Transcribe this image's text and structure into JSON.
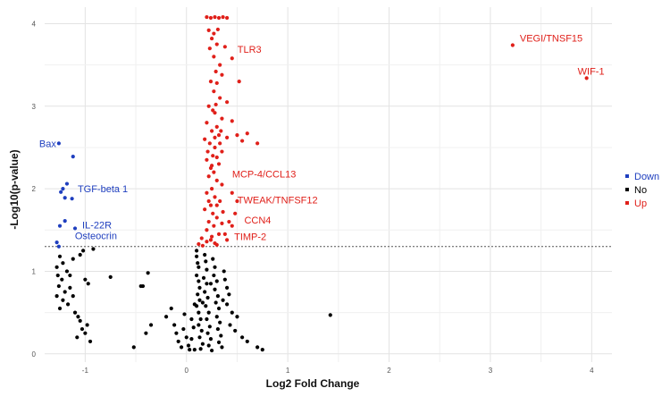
{
  "chart_data": {
    "type": "scatter",
    "xlabel": "Log2 Fold Change",
    "ylabel": "-Log10(p-value)",
    "xlim": [
      -1.4,
      4.2
    ],
    "ylim": [
      -0.1,
      4.2
    ],
    "x_ticks": [
      "-1",
      "0",
      "1",
      "2",
      "3",
      "4"
    ],
    "y_ticks": [
      "0",
      "1",
      "2",
      "3",
      "4"
    ],
    "threshold_y": 1.3,
    "grid": true,
    "legend_position": "right",
    "colors": {
      "Down": "#1f3fbf",
      "No": "#000000",
      "Up": "#e0201a",
      "threshold": "#555555"
    },
    "series": [
      {
        "name": "Down",
        "points": [
          [
            -1.26,
            2.55
          ],
          [
            -1.12,
            2.39
          ],
          [
            -1.18,
            2.06
          ],
          [
            -1.22,
            2.0
          ],
          [
            -1.24,
            1.96
          ],
          [
            -1.2,
            1.89
          ],
          [
            -1.13,
            1.88
          ],
          [
            -1.2,
            1.61
          ],
          [
            -1.25,
            1.55
          ],
          [
            -1.1,
            1.52
          ],
          [
            -1.28,
            1.35
          ],
          [
            -1.26,
            1.3
          ]
        ]
      },
      {
        "name": "No",
        "points": [
          [
            -1.25,
            1.18
          ],
          [
            -1.28,
            1.05
          ],
          [
            -1.22,
            1.1
          ],
          [
            -1.18,
            1.0
          ],
          [
            -1.27,
            0.95
          ],
          [
            -1.23,
            0.9
          ],
          [
            -1.26,
            0.82
          ],
          [
            -1.2,
            0.75
          ],
          [
            -1.15,
            0.8
          ],
          [
            -1.28,
            0.7
          ],
          [
            -1.22,
            0.65
          ],
          [
            -1.17,
            0.6
          ],
          [
            -1.25,
            0.55
          ],
          [
            -1.12,
            0.7
          ],
          [
            -1.1,
            0.5
          ],
          [
            -1.07,
            0.45
          ],
          [
            -1.05,
            0.4
          ],
          [
            -1.03,
            0.3
          ],
          [
            -1.0,
            0.25
          ],
          [
            -0.98,
            0.35
          ],
          [
            -1.08,
            0.2
          ],
          [
            -0.95,
            0.15
          ],
          [
            -1.15,
            0.95
          ],
          [
            -1.05,
            1.2
          ],
          [
            -1.02,
            1.25
          ],
          [
            -0.92,
            1.27
          ],
          [
            -1.0,
            0.9
          ],
          [
            -0.97,
            0.85
          ],
          [
            -1.12,
            1.15
          ],
          [
            -0.75,
            0.93
          ],
          [
            -0.52,
            0.08
          ],
          [
            -0.43,
            0.82
          ],
          [
            -0.45,
            0.82
          ],
          [
            -0.38,
            0.98
          ],
          [
            -0.35,
            0.35
          ],
          [
            -0.4,
            0.25
          ],
          [
            -0.2,
            0.45
          ],
          [
            -0.15,
            0.55
          ],
          [
            -0.12,
            0.35
          ],
          [
            -0.1,
            0.25
          ],
          [
            -0.08,
            0.15
          ],
          [
            -0.05,
            0.08
          ],
          [
            -0.03,
            0.3
          ],
          [
            -0.02,
            0.48
          ],
          [
            0.0,
            0.2
          ],
          [
            0.02,
            0.1
          ],
          [
            0.03,
            0.05
          ],
          [
            0.05,
            0.42
          ],
          [
            0.07,
            0.32
          ],
          [
            0.08,
            0.6
          ],
          [
            0.1,
            1.25
          ],
          [
            0.1,
            1.18
          ],
          [
            0.11,
            1.1
          ],
          [
            0.12,
            1.05
          ],
          [
            0.1,
            0.95
          ],
          [
            0.12,
            0.88
          ],
          [
            0.13,
            0.8
          ],
          [
            0.11,
            0.72
          ],
          [
            0.13,
            0.65
          ],
          [
            0.1,
            0.58
          ],
          [
            0.12,
            0.5
          ],
          [
            0.14,
            0.42
          ],
          [
            0.12,
            0.35
          ],
          [
            0.15,
            0.28
          ],
          [
            0.13,
            0.2
          ],
          [
            0.16,
            0.12
          ],
          [
            0.14,
            0.06
          ],
          [
            0.18,
            1.2
          ],
          [
            0.19,
            1.12
          ],
          [
            0.2,
            1.02
          ],
          [
            0.17,
            0.92
          ],
          [
            0.2,
            0.85
          ],
          [
            0.18,
            0.75
          ],
          [
            0.21,
            0.68
          ],
          [
            0.19,
            0.58
          ],
          [
            0.22,
            0.5
          ],
          [
            0.2,
            0.42
          ],
          [
            0.23,
            0.33
          ],
          [
            0.21,
            0.25
          ],
          [
            0.24,
            0.18
          ],
          [
            0.22,
            0.1
          ],
          [
            0.25,
            0.04
          ],
          [
            0.26,
            1.15
          ],
          [
            0.28,
            1.05
          ],
          [
            0.27,
            0.95
          ],
          [
            0.3,
            0.88
          ],
          [
            0.28,
            0.78
          ],
          [
            0.31,
            0.7
          ],
          [
            0.29,
            0.62
          ],
          [
            0.32,
            0.55
          ],
          [
            0.3,
            0.45
          ],
          [
            0.33,
            0.38
          ],
          [
            0.31,
            0.3
          ],
          [
            0.34,
            0.22
          ],
          [
            0.32,
            0.14
          ],
          [
            0.35,
            0.08
          ],
          [
            0.37,
            1.0
          ],
          [
            0.38,
            0.9
          ],
          [
            0.4,
            0.8
          ],
          [
            0.42,
            0.72
          ],
          [
            0.4,
            0.6
          ],
          [
            0.45,
            0.5
          ],
          [
            0.43,
            0.35
          ],
          [
            0.48,
            0.28
          ],
          [
            0.5,
            0.45
          ],
          [
            0.55,
            0.2
          ],
          [
            0.6,
            0.15
          ],
          [
            0.7,
            0.08
          ],
          [
            0.75,
            0.05
          ],
          [
            1.42,
            0.47
          ],
          [
            0.08,
            0.05
          ],
          [
            0.05,
            0.18
          ],
          [
            0.16,
            0.62
          ],
          [
            0.24,
            0.85
          ],
          [
            0.36,
            0.65
          ]
        ]
      },
      {
        "name": "Up",
        "points": [
          [
            0.2,
            4.08
          ],
          [
            0.24,
            4.07
          ],
          [
            0.28,
            4.08
          ],
          [
            0.32,
            4.07
          ],
          [
            0.36,
            4.08
          ],
          [
            0.4,
            4.07
          ],
          [
            0.22,
            3.92
          ],
          [
            0.27,
            3.88
          ],
          [
            0.31,
            3.93
          ],
          [
            0.25,
            3.82
          ],
          [
            0.3,
            3.75
          ],
          [
            0.23,
            3.7
          ],
          [
            0.27,
            3.6
          ],
          [
            0.38,
            3.72
          ],
          [
            0.45,
            3.58
          ],
          [
            0.33,
            3.5
          ],
          [
            0.29,
            3.42
          ],
          [
            0.35,
            3.38
          ],
          [
            0.24,
            3.3
          ],
          [
            0.3,
            3.28
          ],
          [
            0.52,
            3.3
          ],
          [
            0.27,
            3.18
          ],
          [
            0.33,
            3.1
          ],
          [
            0.4,
            3.05
          ],
          [
            0.22,
            3.0
          ],
          [
            0.28,
            2.92
          ],
          [
            0.35,
            2.85
          ],
          [
            0.45,
            2.82
          ],
          [
            0.2,
            2.8
          ],
          [
            0.3,
            2.75
          ],
          [
            0.25,
            2.7
          ],
          [
            0.32,
            2.65
          ],
          [
            0.4,
            2.62
          ],
          [
            0.5,
            2.65
          ],
          [
            0.6,
            2.67
          ],
          [
            0.55,
            2.58
          ],
          [
            0.7,
            2.55
          ],
          [
            0.18,
            2.6
          ],
          [
            0.23,
            2.55
          ],
          [
            0.28,
            2.5
          ],
          [
            0.35,
            2.45
          ],
          [
            0.26,
            2.4
          ],
          [
            0.2,
            2.35
          ],
          [
            0.32,
            2.3
          ],
          [
            0.24,
            2.25
          ],
          [
            0.27,
            2.2
          ],
          [
            0.22,
            2.15
          ],
          [
            0.3,
            2.1
          ],
          [
            0.35,
            2.05
          ],
          [
            0.25,
            2.0
          ],
          [
            0.2,
            1.95
          ],
          [
            0.28,
            1.9
          ],
          [
            0.33,
            1.85
          ],
          [
            0.24,
            1.8
          ],
          [
            0.45,
            1.95
          ],
          [
            0.5,
            1.85
          ],
          [
            0.18,
            1.75
          ],
          [
            0.26,
            1.7
          ],
          [
            0.3,
            1.65
          ],
          [
            0.22,
            1.6
          ],
          [
            0.35,
            1.58
          ],
          [
            0.42,
            1.6
          ],
          [
            0.27,
            1.55
          ],
          [
            0.2,
            1.5
          ],
          [
            0.32,
            1.45
          ],
          [
            0.25,
            1.42
          ],
          [
            0.38,
            1.45
          ],
          [
            0.15,
            1.4
          ],
          [
            0.2,
            1.36
          ],
          [
            0.28,
            1.34
          ],
          [
            0.12,
            1.33
          ],
          [
            0.16,
            1.31
          ],
          [
            0.24,
            1.38
          ],
          [
            0.3,
            1.32
          ],
          [
            0.4,
            1.38
          ],
          [
            0.45,
            1.55
          ],
          [
            0.48,
            1.7
          ],
          [
            0.36,
            1.72
          ],
          [
            0.3,
            1.8
          ],
          [
            0.22,
            1.85
          ],
          [
            0.26,
            2.95
          ],
          [
            0.29,
            3.02
          ],
          [
            0.34,
            2.7
          ],
          [
            0.21,
            2.45
          ],
          [
            0.28,
            2.62
          ],
          [
            0.3,
            2.38
          ],
          [
            0.25,
            2.28
          ],
          [
            0.33,
            2.55
          ],
          [
            3.22,
            3.74
          ],
          [
            3.95,
            3.34
          ]
        ]
      }
    ],
    "annotations": [
      {
        "text": "Bax",
        "x": -1.26,
        "y": 2.55,
        "series": "Down"
      },
      {
        "text": "TGF-beta 1",
        "x": -1.18,
        "y": 2.0,
        "series": "Down"
      },
      {
        "text": "IL-22R",
        "x": -1.1,
        "y": 1.52,
        "series": "Down"
      },
      {
        "text": "Osteocrin",
        "x": -1.26,
        "y": 1.3,
        "series": "Down"
      },
      {
        "text": "TLR3",
        "x": 0.45,
        "y": 3.58,
        "series": "Up"
      },
      {
        "text": "MCP-4/CCL13",
        "x": 0.38,
        "y": 2.05,
        "series": "Up"
      },
      {
        "text": "TWEAK/TNFSF12",
        "x": 0.45,
        "y": 1.95,
        "series": "Up"
      },
      {
        "text": "CCN4",
        "x": 0.5,
        "y": 1.58,
        "series": "Up"
      },
      {
        "text": "TIMP-2",
        "x": 0.4,
        "y": 1.38,
        "series": "Up"
      },
      {
        "text": "VEGI/TNSF15",
        "x": 3.22,
        "y": 3.74,
        "series": "Up"
      },
      {
        "text": "WIF-1",
        "x": 3.95,
        "y": 3.34,
        "series": "Up"
      }
    ],
    "legend": [
      {
        "name": "Down",
        "color": "#1f3fbf"
      },
      {
        "name": "No",
        "color": "#000000"
      },
      {
        "name": "Up",
        "color": "#e0201a"
      }
    ]
  }
}
